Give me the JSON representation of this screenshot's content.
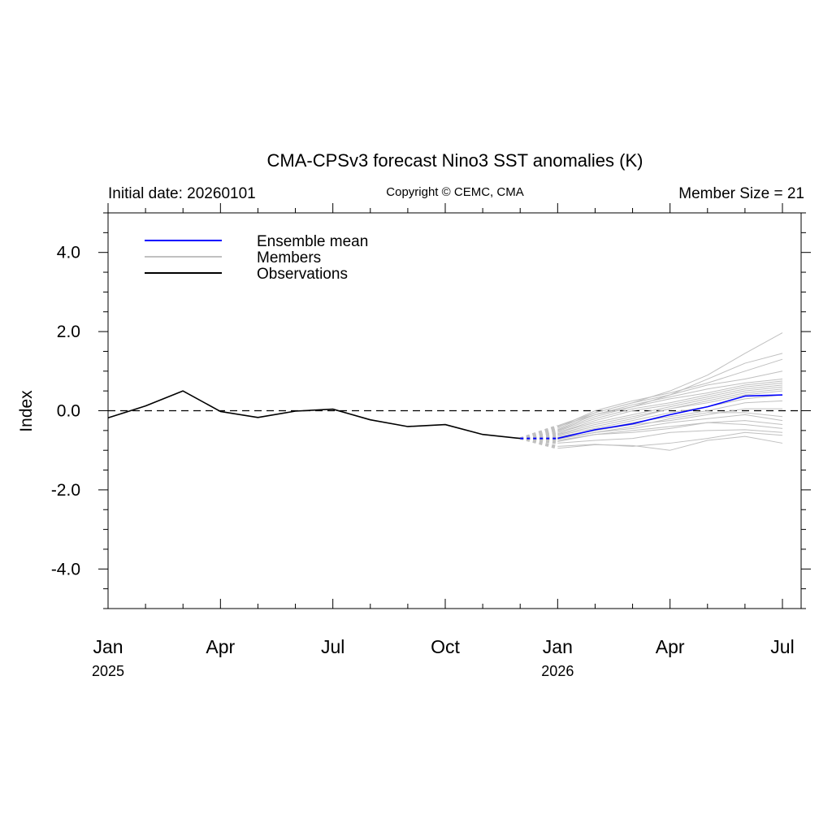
{
  "chart_data": {
    "type": "line",
    "title": "CMA-CPSv3 forecast Nino3 SST anomalies (K)",
    "subtitle_left": "Initial date: 20260101",
    "subtitle_center": "Copyright © CEMC, CMA",
    "subtitle_right": "Member Size = 21",
    "ylabel": "Index",
    "ylim": [
      -5,
      5
    ],
    "y_ticks": [
      4.0,
      2.0,
      0.0,
      -2.0,
      -4.0
    ],
    "y_tick_labels": [
      "4.0",
      "2.0",
      "0.0",
      "-2.0",
      "-4.0"
    ],
    "xlim": [
      "2025-01",
      "2026-07"
    ],
    "x_ticks": [
      {
        "month": "2025-01",
        "label": "Jan",
        "year": "2025"
      },
      {
        "month": "2025-04",
        "label": "Apr",
        "year": ""
      },
      {
        "month": "2025-07",
        "label": "Jul",
        "year": ""
      },
      {
        "month": "2025-10",
        "label": "Oct",
        "year": ""
      },
      {
        "month": "2026-01",
        "label": "Jan",
        "year": "2026"
      },
      {
        "month": "2026-04",
        "label": "Apr",
        "year": ""
      },
      {
        "month": "2026-07",
        "label": "Jul",
        "year": ""
      }
    ],
    "zero_line": "dashed",
    "legend_position": "top-left",
    "colors": {
      "ensemble_mean": "#0000ff",
      "members": "#c0c0c0",
      "observations": "#000000"
    },
    "observations": {
      "name": "Observations",
      "x": [
        "2025-01",
        "2025-02",
        "2025-03",
        "2025-04",
        "2025-05",
        "2025-06",
        "2025-07",
        "2025-08",
        "2025-09",
        "2025-10",
        "2025-11",
        "2025-12"
      ],
      "y": [
        -0.18,
        0.12,
        0.5,
        -0.02,
        -0.17,
        -0.01,
        0.04,
        -0.23,
        -0.4,
        -0.35,
        -0.6,
        -0.7
      ]
    },
    "forecast_x": [
      "2026-01",
      "2026-02",
      "2026-03",
      "2026-04",
      "2026-05",
      "2026-06",
      "2026-07"
    ],
    "ensemble_mean": {
      "name": "Ensemble mean",
      "y": [
        -0.7,
        -0.48,
        -0.33,
        -0.1,
        0.1,
        0.37,
        0.4
      ]
    },
    "members": {
      "name": "Members",
      "series": [
        [
          -0.95,
          -0.86,
          -0.88,
          -1.0,
          -0.75,
          -0.65,
          -0.82
        ],
        [
          -0.9,
          -0.85,
          -0.9,
          -0.82,
          -0.7,
          -0.55,
          -0.62
        ],
        [
          -0.82,
          -0.75,
          -0.7,
          -0.55,
          -0.5,
          -0.48,
          -0.55
        ],
        [
          -0.78,
          -0.6,
          -0.55,
          -0.45,
          -0.3,
          -0.35,
          -0.45
        ],
        [
          -0.75,
          -0.6,
          -0.5,
          -0.4,
          -0.3,
          -0.25,
          -0.35
        ],
        [
          -0.72,
          -0.55,
          -0.45,
          -0.3,
          -0.2,
          -0.1,
          -0.25
        ],
        [
          -0.7,
          -0.55,
          -0.4,
          -0.2,
          -0.05,
          -0.05,
          -0.15
        ],
        [
          -0.68,
          -0.5,
          -0.35,
          -0.25,
          -0.1,
          0.05,
          0.05
        ],
        [
          -0.65,
          -0.5,
          -0.3,
          -0.15,
          0.0,
          0.2,
          0.25
        ],
        [
          -0.62,
          -0.45,
          -0.25,
          -0.05,
          0.1,
          0.3,
          0.4
        ],
        [
          -0.6,
          -0.4,
          -0.2,
          0.05,
          0.2,
          0.4,
          0.5
        ],
        [
          -0.58,
          -0.35,
          -0.15,
          0.05,
          0.25,
          0.45,
          0.55
        ],
        [
          -0.55,
          -0.3,
          -0.1,
          0.1,
          0.3,
          0.5,
          0.6
        ],
        [
          -0.55,
          -0.25,
          0.0,
          0.15,
          0.35,
          0.55,
          0.65
        ],
        [
          -0.52,
          -0.2,
          0.05,
          0.2,
          0.4,
          0.6,
          0.7
        ],
        [
          -0.5,
          -0.15,
          0.1,
          0.3,
          0.45,
          0.65,
          0.75
        ],
        [
          -0.48,
          -0.1,
          0.15,
          0.35,
          0.55,
          0.7,
          0.8
        ],
        [
          -0.45,
          -0.05,
          0.2,
          0.4,
          0.65,
          0.8,
          1.0
        ],
        [
          -0.42,
          0.0,
          0.25,
          0.45,
          0.7,
          1.0,
          1.3
        ],
        [
          -0.4,
          -0.1,
          0.1,
          0.4,
          0.8,
          1.2,
          1.45
        ],
        [
          -0.38,
          -0.05,
          0.2,
          0.5,
          0.9,
          1.45,
          1.97
        ]
      ]
    }
  }
}
